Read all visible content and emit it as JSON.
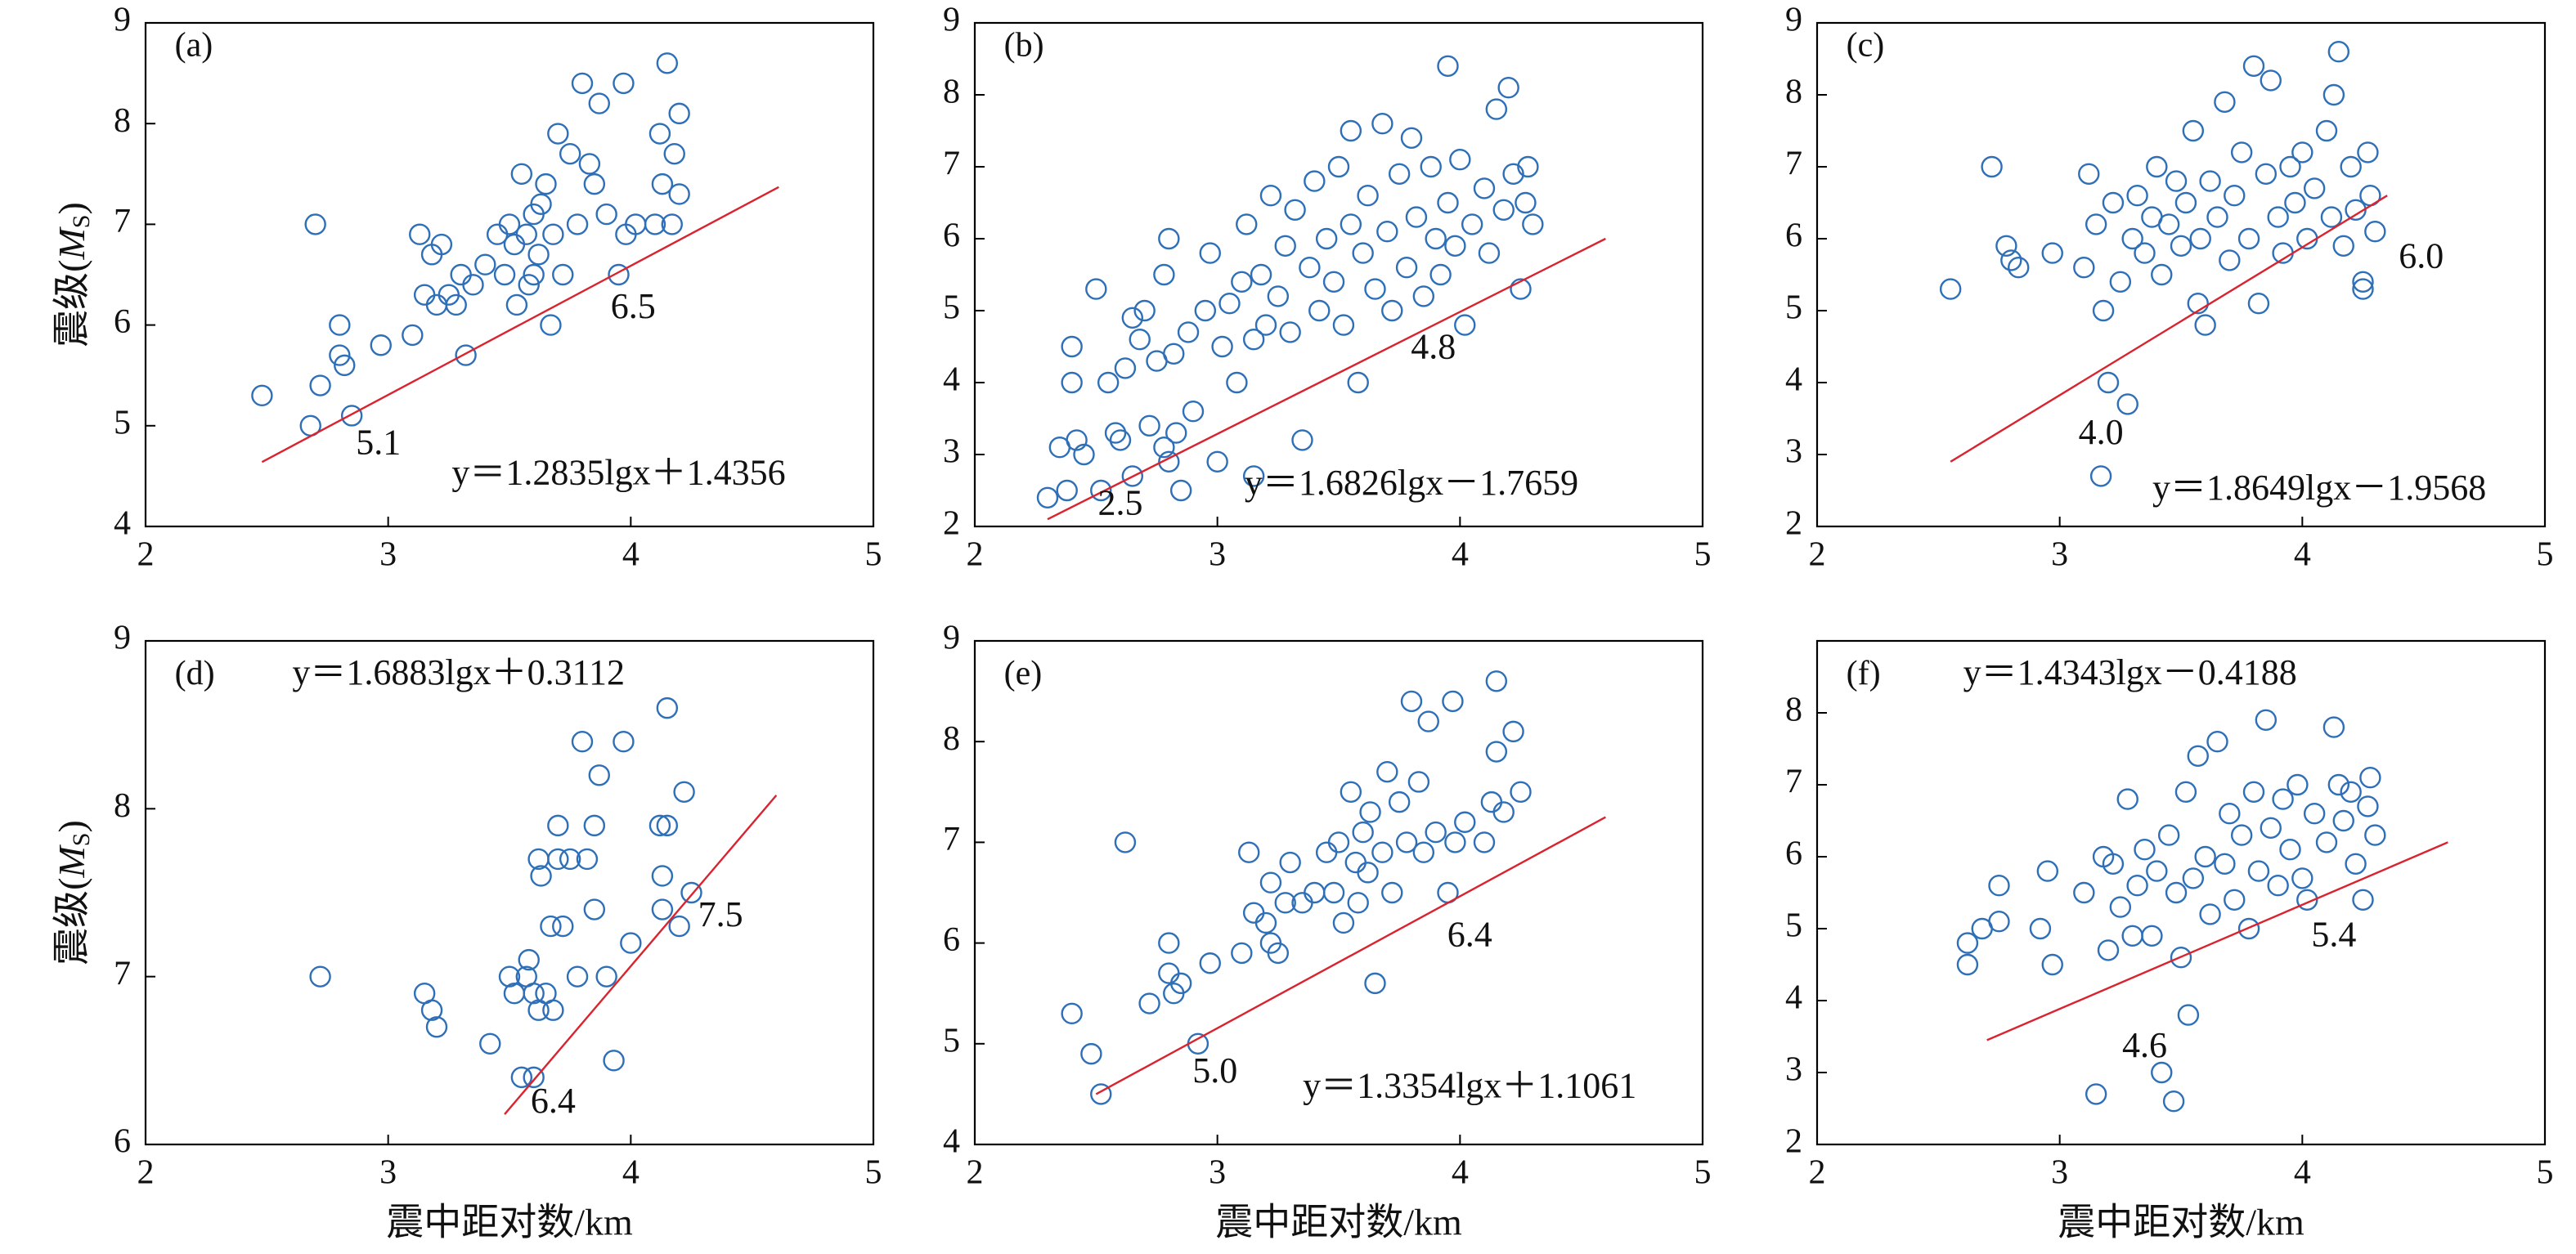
{
  "chart_data": [
    {
      "type": "scatter",
      "label": "(a)",
      "equation": "y＝1.2835lgx＋1.4356",
      "annotations": [
        "5.1",
        "6.5"
      ],
      "ylabel": [
        "震级(",
        "M",
        "S",
        ")"
      ],
      "xlim": [
        2,
        5
      ],
      "xticks": [
        2,
        3,
        4,
        5
      ],
      "ylim": [
        4,
        9
      ],
      "yticks": [
        4,
        5,
        6,
        7,
        8,
        9
      ],
      "series": [
        {
          "color": "#2e6fb7",
          "x": [
            2.48,
            2.68,
            2.7,
            2.72,
            2.8,
            2.8,
            2.82,
            2.85,
            2.97,
            3.1,
            3.13,
            3.15,
            3.18,
            3.2,
            3.22,
            3.25,
            3.28,
            3.3,
            3.32,
            3.35,
            3.4,
            3.45,
            3.48,
            3.5,
            3.52,
            3.53,
            3.55,
            3.57,
            3.58,
            3.6,
            3.6,
            3.62,
            3.63,
            3.65,
            3.67,
            3.68,
            3.7,
            3.72,
            3.75,
            3.78,
            3.8,
            3.83,
            3.85,
            3.87,
            3.9,
            3.95,
            3.97,
            3.98,
            4.02,
            4.1,
            4.12,
            4.13,
            4.15,
            4.18,
            4.2,
            4.17,
            4.2
          ],
          "values": [
            5.3,
            5.0,
            7.0,
            5.4,
            6.0,
            5.7,
            5.6,
            5.1,
            5.8,
            5.9,
            6.9,
            6.3,
            6.7,
            6.2,
            6.8,
            6.3,
            6.2,
            6.5,
            5.7,
            6.4,
            6.6,
            6.9,
            6.5,
            7.0,
            6.8,
            6.2,
            7.5,
            6.9,
            6.4,
            7.1,
            6.5,
            6.7,
            7.2,
            7.4,
            6.0,
            6.9,
            7.9,
            6.5,
            7.7,
            7.0,
            8.4,
            7.6,
            7.4,
            8.2,
            7.1,
            6.5,
            8.4,
            6.9,
            7.0,
            7.0,
            7.9,
            7.4,
            8.6,
            7.7,
            8.1,
            7.0,
            7.3
          ]
        }
      ],
      "fit": {
        "color": "#d9232f",
        "x": [
          2.48,
          4.61
        ],
        "values": [
          4.64,
          7.37
        ]
      }
    },
    {
      "type": "scatter",
      "label": "(b)",
      "equation": "y＝1.6826lgx－1.7659",
      "annotations": [
        "4.8",
        "2.5"
      ],
      "xlim": [
        2,
        5
      ],
      "xticks": [
        2,
        3,
        4,
        5
      ],
      "ylim": [
        2,
        9
      ],
      "yticks": [
        2,
        3,
        4,
        5,
        6,
        7,
        8,
        9
      ],
      "series": [
        {
          "color": "#2e6fb7",
          "x": [
            2.3,
            2.35,
            2.38,
            2.4,
            2.4,
            2.42,
            2.45,
            2.5,
            2.52,
            2.55,
            2.58,
            2.6,
            2.62,
            2.65,
            2.65,
            2.68,
            2.7,
            2.72,
            2.75,
            2.78,
            2.78,
            2.8,
            2.8,
            2.82,
            2.83,
            2.85,
            2.88,
            2.9,
            2.95,
            2.97,
            3.0,
            3.02,
            3.05,
            3.08,
            3.1,
            3.12,
            3.15,
            3.15,
            3.18,
            3.2,
            3.22,
            3.25,
            3.28,
            3.3,
            3.32,
            3.35,
            3.38,
            3.4,
            3.42,
            3.45,
            3.48,
            3.5,
            3.52,
            3.55,
            3.55,
            3.58,
            3.6,
            3.62,
            3.65,
            3.68,
            3.7,
            3.72,
            3.75,
            3.78,
            3.8,
            3.82,
            3.85,
            3.88,
            3.9,
            3.92,
            3.95,
            3.95,
            3.98,
            4.0,
            4.02,
            4.05,
            4.1,
            4.12,
            4.15,
            4.18,
            4.2,
            4.22,
            4.25,
            4.27,
            4.28,
            4.3
          ],
          "values": [
            2.4,
            3.1,
            2.5,
            4.5,
            4.0,
            3.2,
            3.0,
            5.3,
            2.5,
            4.0,
            3.3,
            3.2,
            4.2,
            4.9,
            2.7,
            4.6,
            5.0,
            3.4,
            4.3,
            5.5,
            3.1,
            6.0,
            2.9,
            4.4,
            3.3,
            2.5,
            4.7,
            3.6,
            5.0,
            5.8,
            2.9,
            4.5,
            5.1,
            4.0,
            5.4,
            6.2,
            4.6,
            2.7,
            5.5,
            4.8,
            6.6,
            5.2,
            5.9,
            4.7,
            6.4,
            3.2,
            5.6,
            6.8,
            5.0,
            6.0,
            5.4,
            7.0,
            4.8,
            7.5,
            6.2,
            4.0,
            5.8,
            6.6,
            5.3,
            7.6,
            6.1,
            5.0,
            6.9,
            5.6,
            7.4,
            6.3,
            5.2,
            7.0,
            6.0,
            5.5,
            8.4,
            6.5,
            5.9,
            7.1,
            4.8,
            6.2,
            6.7,
            5.8,
            7.8,
            6.4,
            8.1,
            6.9,
            5.3,
            6.5,
            7.0,
            6.2
          ]
        }
      ],
      "fit": {
        "color": "#d9232f",
        "x": [
          2.3,
          4.6
        ],
        "values": [
          2.1,
          6.0
        ]
      }
    },
    {
      "type": "scatter",
      "label": "(c)",
      "equation": "y＝1.8649lgx－1.9568",
      "annotations": [
        "6.0",
        "4.0"
      ],
      "xlim": [
        2,
        5
      ],
      "xticks": [
        2,
        3,
        4,
        5
      ],
      "ylim": [
        2,
        9
      ],
      "yticks": [
        2,
        3,
        4,
        5,
        6,
        7,
        8,
        9
      ],
      "series": [
        {
          "color": "#2e6fb7",
          "x": [
            2.55,
            2.72,
            2.78,
            2.8,
            2.83,
            2.97,
            3.1,
            3.12,
            3.15,
            3.17,
            3.18,
            3.2,
            3.22,
            3.25,
            3.28,
            3.3,
            3.32,
            3.35,
            3.38,
            3.4,
            3.42,
            3.45,
            3.48,
            3.5,
            3.52,
            3.55,
            3.57,
            3.58,
            3.6,
            3.62,
            3.65,
            3.68,
            3.7,
            3.72,
            3.75,
            3.78,
            3.8,
            3.82,
            3.85,
            3.87,
            3.9,
            3.92,
            3.95,
            3.97,
            4.0,
            4.02,
            4.05,
            4.1,
            4.12,
            4.13,
            4.15,
            4.17,
            4.2,
            4.22,
            4.25,
            4.27,
            4.28,
            4.3,
            4.25
          ],
          "values": [
            5.3,
            7.0,
            5.9,
            5.7,
            5.6,
            5.8,
            5.6,
            6.9,
            6.2,
            2.7,
            5.0,
            4.0,
            6.5,
            5.4,
            3.7,
            6.0,
            6.6,
            5.8,
            6.3,
            7.0,
            5.5,
            6.2,
            6.8,
            5.9,
            6.5,
            7.5,
            5.1,
            6.0,
            4.8,
            6.8,
            6.3,
            7.9,
            5.7,
            6.6,
            7.2,
            6.0,
            8.4,
            5.1,
            6.9,
            8.2,
            6.3,
            5.8,
            7.0,
            6.5,
            7.2,
            6.0,
            6.7,
            7.5,
            6.3,
            8.0,
            8.6,
            5.9,
            7.0,
            6.4,
            5.4,
            7.2,
            6.6,
            6.1,
            5.3
          ]
        }
      ],
      "fit": {
        "color": "#d9232f",
        "x": [
          2.55,
          4.35
        ],
        "values": [
          2.9,
          6.6
        ]
      }
    },
    {
      "type": "scatter",
      "label": "(d)",
      "equation": "y＝1.6883lgx＋0.3112",
      "annotations": [
        "7.5",
        "6.4"
      ],
      "ylabel": [
        "震级(",
        "M",
        "S",
        ")"
      ],
      "xlabel": "震中距对数/km",
      "xlim": [
        2,
        5
      ],
      "xticks": [
        2,
        3,
        4,
        5
      ],
      "ylim": [
        6,
        9
      ],
      "yticks": [
        6,
        7,
        8,
        9
      ],
      "series": [
        {
          "color": "#2e6fb7",
          "x": [
            2.72,
            3.15,
            3.18,
            3.2,
            3.42,
            3.5,
            3.52,
            3.55,
            3.57,
            3.58,
            3.6,
            3.6,
            3.62,
            3.63,
            3.65,
            3.67,
            3.68,
            3.7,
            3.72,
            3.75,
            3.78,
            3.8,
            3.82,
            3.85,
            3.85,
            3.87,
            3.9,
            3.93,
            3.97,
            4.0,
            4.12,
            4.13,
            4.13,
            4.15,
            4.15,
            4.2,
            4.22,
            4.25,
            3.62,
            3.7
          ],
          "values": [
            7.0,
            6.9,
            6.8,
            6.7,
            6.6,
            7.0,
            6.9,
            6.4,
            7.0,
            7.1,
            6.4,
            6.9,
            6.8,
            7.6,
            6.9,
            7.3,
            6.8,
            7.9,
            7.3,
            7.7,
            7.0,
            8.4,
            7.7,
            7.4,
            7.9,
            8.2,
            7.0,
            6.5,
            8.4,
            7.2,
            7.9,
            7.4,
            7.6,
            8.6,
            7.9,
            7.3,
            8.1,
            7.5,
            7.7,
            7.7
          ]
        }
      ],
      "fit": {
        "color": "#d9232f",
        "x": [
          3.48,
          4.6
        ],
        "values": [
          6.18,
          8.08
        ]
      }
    },
    {
      "type": "scatter",
      "label": "(e)",
      "equation": "y＝1.3354lgx＋1.1061",
      "annotations": [
        "6.4",
        "5.0"
      ],
      "xlabel": "震中距对数/km",
      "xlim": [
        2,
        5
      ],
      "xticks": [
        2,
        3,
        4,
        5
      ],
      "ylim": [
        4,
        9
      ],
      "yticks": [
        4,
        5,
        6,
        7,
        8,
        9
      ],
      "series": [
        {
          "color": "#2e6fb7",
          "x": [
            2.4,
            2.48,
            2.52,
            2.62,
            2.72,
            2.8,
            2.8,
            2.82,
            2.85,
            2.92,
            2.97,
            3.1,
            3.13,
            3.15,
            3.2,
            3.22,
            3.22,
            3.25,
            3.28,
            3.3,
            3.35,
            3.4,
            3.45,
            3.48,
            3.5,
            3.52,
            3.55,
            3.57,
            3.58,
            3.6,
            3.62,
            3.63,
            3.65,
            3.68,
            3.7,
            3.72,
            3.75,
            3.78,
            3.8,
            3.83,
            3.85,
            3.87,
            3.9,
            3.95,
            3.97,
            3.98,
            4.02,
            4.1,
            4.13,
            4.15,
            4.15,
            4.18,
            4.22,
            4.25
          ],
          "values": [
            5.3,
            4.9,
            4.5,
            7.0,
            5.4,
            6.0,
            5.7,
            5.5,
            5.6,
            5.0,
            5.8,
            5.9,
            6.9,
            6.3,
            6.2,
            6.0,
            6.6,
            5.9,
            6.4,
            6.8,
            6.4,
            6.5,
            6.9,
            6.5,
            7.0,
            6.2,
            7.5,
            6.8,
            6.4,
            7.1,
            6.7,
            7.3,
            5.6,
            6.9,
            7.7,
            6.5,
            7.4,
            7.0,
            8.4,
            7.6,
            6.9,
            8.2,
            7.1,
            6.5,
            8.4,
            7.0,
            7.2,
            7.0,
            7.4,
            8.6,
            7.9,
            7.3,
            8.1,
            7.5
          ]
        }
      ],
      "fit": {
        "color": "#d9232f",
        "x": [
          2.5,
          4.6
        ],
        "values": [
          4.5,
          7.25
        ]
      }
    },
    {
      "type": "scatter",
      "label": "(f)",
      "equation": "y＝1.4343lgx－0.4188",
      "annotations": [
        "5.4",
        "4.6"
      ],
      "xlabel": "震中距对数/km",
      "xlim": [
        2,
        5
      ],
      "xticks": [
        2,
        3,
        4,
        5
      ],
      "ylim": [
        2,
        9
      ],
      "yticks": [
        2,
        3,
        4,
        5,
        6,
        7,
        8
      ],
      "series": [
        {
          "color": "#2e6fb7",
          "x": [
            2.62,
            2.62,
            2.68,
            2.75,
            2.75,
            2.92,
            2.95,
            2.97,
            3.1,
            3.15,
            3.18,
            3.2,
            3.22,
            3.25,
            3.28,
            3.3,
            3.32,
            3.35,
            3.38,
            3.4,
            3.42,
            3.45,
            3.47,
            3.48,
            3.5,
            3.52,
            3.53,
            3.55,
            3.57,
            3.6,
            3.62,
            3.65,
            3.68,
            3.7,
            3.72,
            3.75,
            3.78,
            3.8,
            3.82,
            3.85,
            3.87,
            3.9,
            3.92,
            3.95,
            3.98,
            4.0,
            4.02,
            4.05,
            4.1,
            4.13,
            4.15,
            4.17,
            4.2,
            4.22,
            4.25,
            4.27,
            4.28,
            4.3
          ],
          "values": [
            4.5,
            4.8,
            5.0,
            5.1,
            5.6,
            5.0,
            5.8,
            4.5,
            5.5,
            2.7,
            6.0,
            4.7,
            5.9,
            5.3,
            6.8,
            4.9,
            5.6,
            6.1,
            4.9,
            5.8,
            3.0,
            6.3,
            2.6,
            5.5,
            4.6,
            6.9,
            3.8,
            5.7,
            7.4,
            6.0,
            5.2,
            7.6,
            5.9,
            6.6,
            5.4,
            6.3,
            5.0,
            6.9,
            5.8,
            7.9,
            6.4,
            5.6,
            6.8,
            6.1,
            7.0,
            5.7,
            5.4,
            6.6,
            6.2,
            7.8,
            7.0,
            6.5,
            6.9,
            5.9,
            5.4,
            6.7,
            7.1,
            6.3
          ]
        }
      ],
      "fit": {
        "color": "#d9232f",
        "x": [
          2.7,
          4.6
        ],
        "values": [
          3.45,
          6.2
        ]
      }
    }
  ]
}
